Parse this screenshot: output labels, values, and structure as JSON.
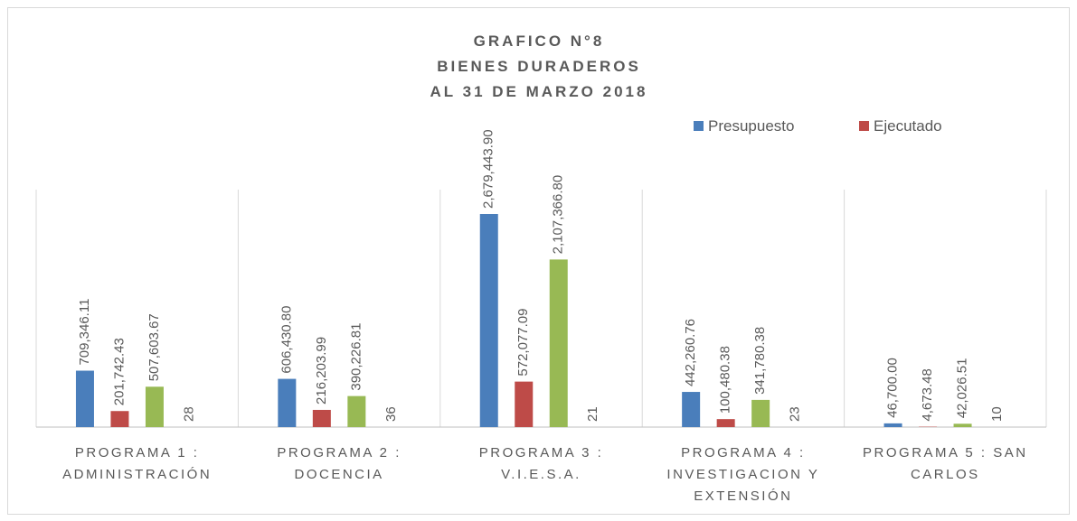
{
  "chart_data": {
    "type": "bar",
    "title": [
      "GRAFICO N°8",
      "BIENES DURADEROS",
      "AL 31 DE MARZO 2018"
    ],
    "categories": [
      "PROGRAMA 1 : ADMINISTRACIÓN",
      "PROGRAMA 2 : DOCENCIA",
      "PROGRAMA 3 : V.I.E.S.A.",
      "PROGRAMA 4 : INVESTIGACION Y EXTENSIÓN",
      "PROGRAMA 5 : SAN CARLOS"
    ],
    "series": [
      {
        "name": "Presupuesto",
        "color": "#4a7ebb",
        "values": [
          709346.11,
          606430.8,
          2679443.9,
          442260.76,
          46700.0
        ],
        "value_labels": [
          "709,346.11",
          "606,430.80",
          "2,679,443.90",
          "442,260.76",
          "46,700.00"
        ]
      },
      {
        "name": "Ejecutado",
        "color": "#be4b48",
        "values": [
          201742.43,
          216203.99,
          572077.09,
          100480.38,
          4673.48
        ],
        "value_labels": [
          "201,742.43",
          "216,203.99",
          "572,077.09",
          "100,480.38",
          "4,673.48"
        ]
      },
      {
        "color": "#98b954",
        "values": [
          507603.67,
          390226.81,
          2107366.8,
          341780.38,
          42026.51
        ],
        "value_labels": [
          "507,603.67",
          "390,226.81",
          "2,107,366.80",
          "341,780.38",
          "42,026.51"
        ]
      },
      {
        "values": [
          28,
          36,
          21,
          23,
          10
        ]
      }
    ]
  }
}
